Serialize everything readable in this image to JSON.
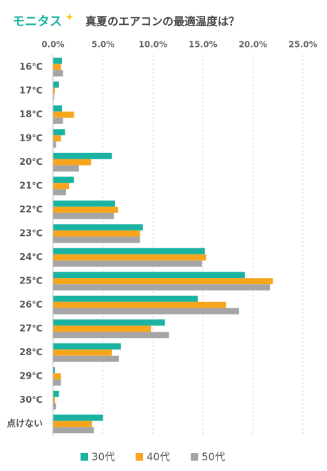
{
  "logo": "モニタス",
  "chart_data": {
    "type": "hbar",
    "title": "真夏のエアコンの最適温度は？",
    "categories": [
      "16℃",
      "17℃",
      "18℃",
      "19℃",
      "20℃",
      "21℃",
      "22℃",
      "23℃",
      "24℃",
      "25℃",
      "26℃",
      "27℃",
      "28℃",
      "29℃",
      "30℃",
      "点けない"
    ],
    "series": [
      {
        "name": "30代",
        "color": "#1ab3a1",
        "values": [
          0.9,
          0.6,
          0.9,
          1.2,
          5.9,
          2.1,
          6.2,
          9.0,
          15.2,
          19.2,
          14.5,
          11.2,
          6.8,
          0.2,
          0.6,
          5.0
        ]
      },
      {
        "name": "40代",
        "color": "#f7a51c",
        "values": [
          0.8,
          0.2,
          2.1,
          0.8,
          3.8,
          1.6,
          6.5,
          8.7,
          15.3,
          22.0,
          17.3,
          9.8,
          5.9,
          0.8,
          0.2,
          3.9
        ]
      },
      {
        "name": "50代",
        "color": "#a5a5a5",
        "values": [
          1.0,
          0.1,
          1.0,
          0.3,
          2.6,
          1.3,
          6.1,
          8.7,
          14.9,
          21.7,
          18.6,
          11.6,
          6.6,
          0.8,
          0.3,
          4.1
        ]
      }
    ],
    "xlim": [
      0,
      25
    ],
    "xticks": [
      {
        "value": 0,
        "label": "0.0%"
      },
      {
        "value": 5,
        "label": "5.0%"
      },
      {
        "value": 10,
        "label": "10.0%"
      },
      {
        "value": 15,
        "label": "15.0%"
      },
      {
        "value": 20,
        "label": "20.0%"
      },
      {
        "value": 25,
        "label": "25.0%"
      }
    ],
    "grid": true,
    "legend": "bottom"
  }
}
